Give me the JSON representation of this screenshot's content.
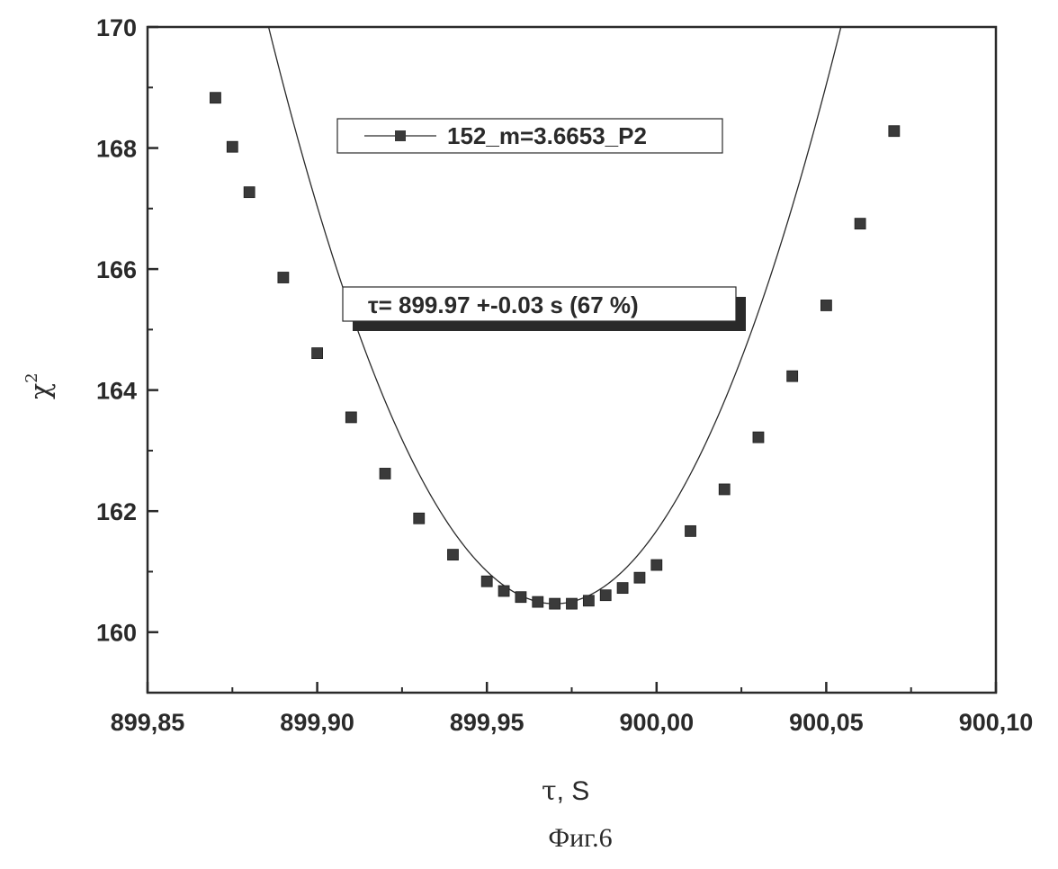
{
  "chart_data": {
    "type": "scatter",
    "xlabel_symbol": "τ",
    "xlabel_unit": ", S",
    "ylabel_symbol": "χ",
    "ylabel_sup": "2",
    "xlim": [
      899.85,
      900.1
    ],
    "ylim": [
      159.0,
      170.0
    ],
    "x_ticks": [
      899.85,
      899.9,
      899.95,
      900.0,
      900.05,
      900.1
    ],
    "x_tick_labels": [
      "899,85",
      "899,90",
      "899,95",
      "900,00",
      "900,05",
      "900,10"
    ],
    "y_ticks": [
      160,
      162,
      164,
      166,
      168,
      170
    ],
    "y_tick_labels": [
      "160",
      "162",
      "164",
      "166",
      "168",
      "170"
    ],
    "legend": {
      "placement": "top-center",
      "label": "152_m=3.6653_P2"
    },
    "annotation": "τ= 899.97 +-0.03 s (67 %)",
    "fit_curve": {
      "x_min": 899.97,
      "y_min": 160.47,
      "a": 1340
    },
    "series": [
      {
        "name": "152_m=3.6653_P2",
        "x": [
          899.87,
          899.875,
          899.88,
          899.89,
          899.9,
          899.91,
          899.92,
          899.93,
          899.94,
          899.95,
          899.955,
          899.96,
          899.965,
          899.97,
          899.975,
          899.98,
          899.985,
          899.99,
          899.995,
          900.0,
          900.01,
          900.02,
          900.03,
          900.04,
          900.05,
          900.06,
          900.07
        ],
        "y": [
          168.83,
          168.02,
          167.27,
          165.86,
          164.61,
          163.55,
          162.62,
          161.88,
          161.28,
          160.84,
          160.68,
          160.58,
          160.5,
          160.47,
          160.47,
          160.52,
          160.61,
          160.73,
          160.9,
          161.11,
          161.67,
          162.36,
          163.22,
          164.23,
          165.4,
          166.75,
          168.28
        ]
      }
    ]
  },
  "caption": "Фиг.6",
  "colors": {
    "ink": "#2a2a2a",
    "marker": "#3a3a3a",
    "shadow": "#2a2a2a"
  }
}
